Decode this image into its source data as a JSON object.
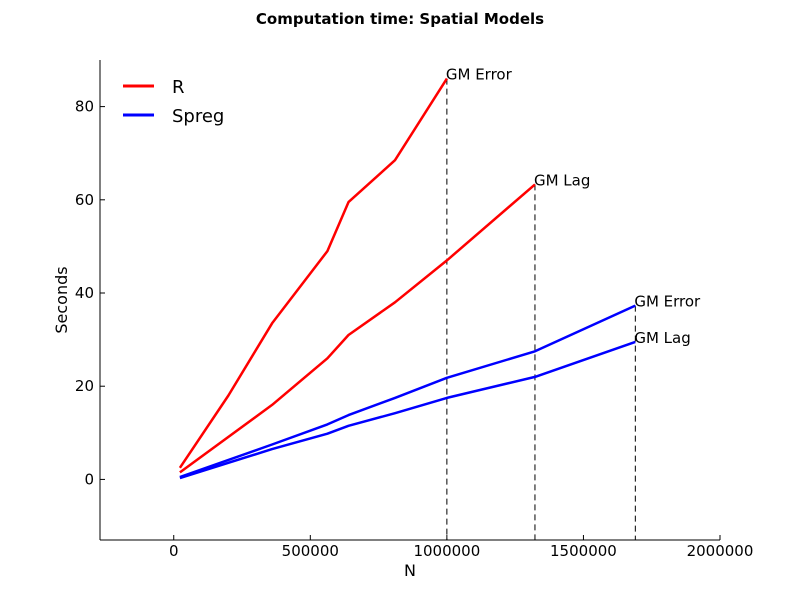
{
  "chart_data": {
    "type": "line",
    "title": "Computation time: Spatial Models",
    "xlabel": "N",
    "ylabel": "Seconds",
    "xlim": [
      -270000,
      2000000
    ],
    "ylim": [
      -13,
      90
    ],
    "x_ticks": [
      0,
      500000,
      1000000,
      1500000,
      2000000
    ],
    "x_tick_labels": [
      "0",
      "500000",
      "1000000",
      "1500000",
      "2000000"
    ],
    "y_ticks": [
      0,
      20,
      40,
      60,
      80
    ],
    "y_tick_labels": [
      "0",
      "20",
      "40",
      "60",
      "80"
    ],
    "grid": false,
    "legend": {
      "position": "top-left",
      "entries": [
        {
          "label": "R",
          "color": "#ff0000"
        },
        {
          "label": "Spreg",
          "color": "#0000ff"
        }
      ]
    },
    "series": [
      {
        "name": "R",
        "model": "GM Error",
        "color": "#ff0000",
        "points": [
          [
            22500,
            2.5
          ],
          [
            200000,
            18
          ],
          [
            360000,
            33.5
          ],
          [
            562500,
            49
          ],
          [
            640000,
            59.5
          ],
          [
            810000,
            68.5
          ],
          [
            1000000,
            86
          ]
        ]
      },
      {
        "name": "R",
        "model": "GM Lag",
        "color": "#ff0000",
        "points": [
          [
            22500,
            1.5
          ],
          [
            360000,
            16
          ],
          [
            562500,
            26
          ],
          [
            640000,
            31
          ],
          [
            810000,
            38
          ],
          [
            1000000,
            47
          ],
          [
            1322500,
            63.3
          ]
        ]
      },
      {
        "name": "Spreg",
        "model": "GM Error",
        "color": "#0000ff",
        "points": [
          [
            22500,
            0.5
          ],
          [
            360000,
            7.5
          ],
          [
            562500,
            11.8
          ],
          [
            640000,
            13.8
          ],
          [
            810000,
            17.5
          ],
          [
            1000000,
            21.8
          ],
          [
            1322500,
            27.5
          ],
          [
            1690000,
            37.3
          ]
        ]
      },
      {
        "name": "Spreg",
        "model": "GM Lag",
        "color": "#0000ff",
        "points": [
          [
            22500,
            0.3
          ],
          [
            360000,
            6.5
          ],
          [
            562500,
            9.8
          ],
          [
            640000,
            11.5
          ],
          [
            810000,
            14.2
          ],
          [
            1000000,
            17.5
          ],
          [
            1322500,
            22
          ],
          [
            1690000,
            29.5
          ]
        ]
      }
    ],
    "annotations": [
      {
        "text": "GM Error",
        "x": 1000000,
        "y": 86
      },
      {
        "text": "GM Lag",
        "x": 1322500,
        "y": 63.3
      },
      {
        "text": "GM Error",
        "x": 1690000,
        "y": 37.3
      },
      {
        "text": "GM Lag",
        "x": 1690000,
        "y": 29.5
      }
    ],
    "vertical_markers": [
      {
        "x": 1000000,
        "y_top": 86
      },
      {
        "x": 1322500,
        "y_top": 63.3
      },
      {
        "x": 1690000,
        "y_top": 37.3
      }
    ]
  }
}
